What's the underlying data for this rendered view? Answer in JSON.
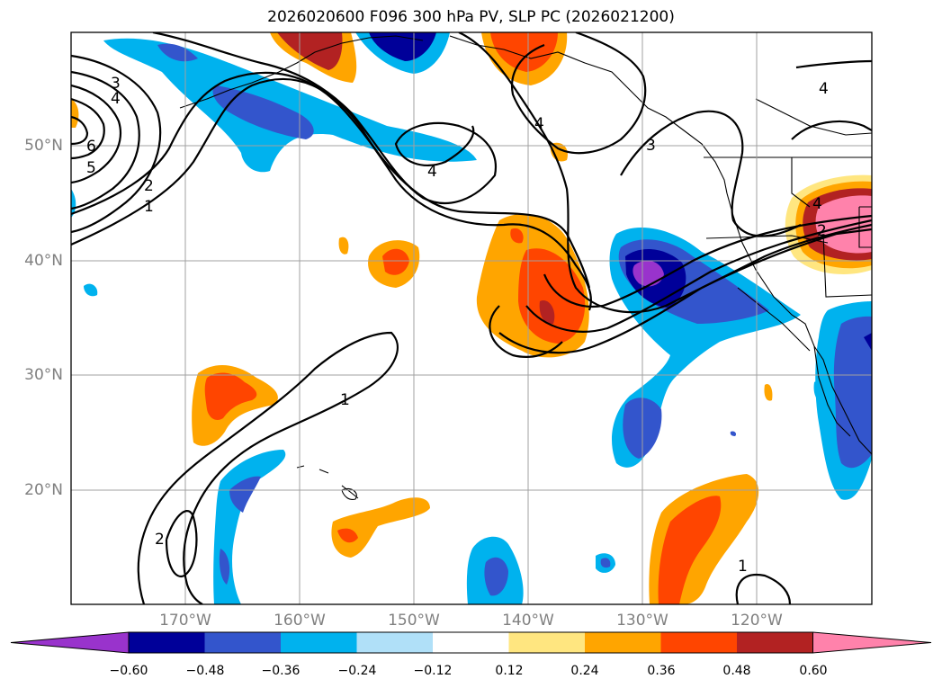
{
  "title": "2026020600 F096 300 hPa PV, SLP PC (2026021200)",
  "map": {
    "lat_labels": [
      "50°N",
      "40°N",
      "30°N",
      "20°N"
    ],
    "lon_labels": [
      "170°W",
      "160°W",
      "150°W",
      "140°W",
      "130°W",
      "120°W"
    ],
    "contour_labels": [
      "3",
      "4",
      "6",
      "5",
      "2",
      "1",
      "4",
      "4",
      "3",
      "4",
      "4",
      "2",
      "1",
      "2",
      "1"
    ]
  },
  "colorbar": {
    "colors": [
      "#9933cc",
      "#000099",
      "#3355cc",
      "#00b2ee",
      "#b0e0f8",
      "#ffffff",
      "#ffe680",
      "#ffa500",
      "#ff4500",
      "#b22222",
      "#ff82ab"
    ],
    "ticks": [
      "−0.60",
      "−0.48",
      "−0.36",
      "−0.24",
      "−0.12",
      "0.12",
      "0.24",
      "0.36",
      "0.48",
      "0.60"
    ]
  }
}
